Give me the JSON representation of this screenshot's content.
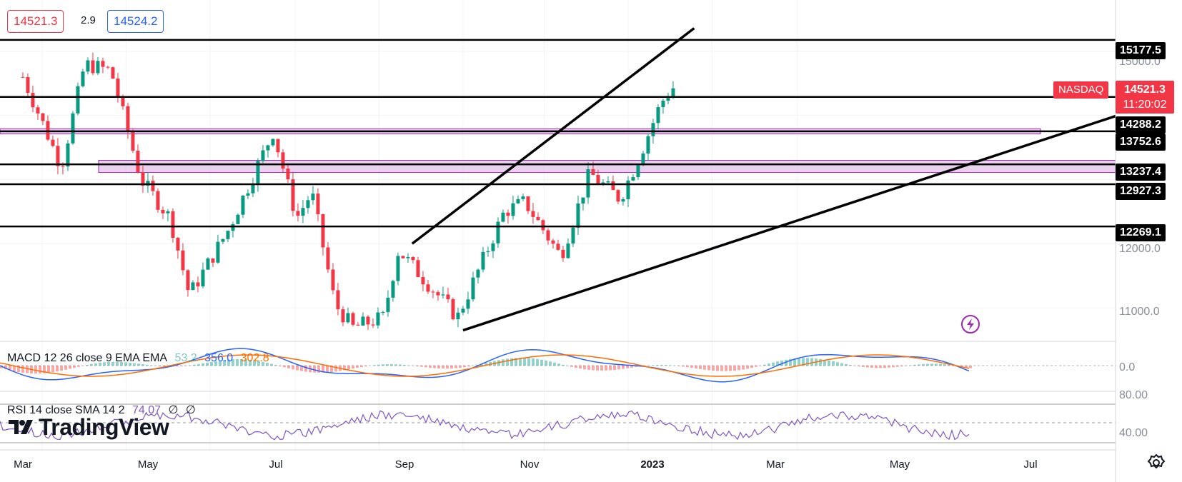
{
  "header": {
    "bid": "14521.3",
    "spread": "2.9",
    "ask": "14524.2"
  },
  "price_axis": {
    "ticks": [
      "15000.0",
      "12000.0",
      "11000.0"
    ],
    "levels": [
      "15177.5",
      "14288.2",
      "13752.6",
      "13237.4",
      "12927.3",
      "12269.1"
    ],
    "last_price": "14521.3",
    "countdown": "11:20:02",
    "symbol": "NASDAQ"
  },
  "macd": {
    "label": "MACD 12 26 close 9 EMA EMA",
    "hist": "53.2",
    "macd": "356.0",
    "signal": "302.8",
    "zero": "0.0"
  },
  "rsi": {
    "label": "RSI 14 close SMA 14 2",
    "value": "74.07",
    "extra1": "∅",
    "extra2": "∅",
    "upper": "80.00",
    "lower": "40.00"
  },
  "time_axis": [
    "Mar",
    "May",
    "Jul",
    "Sep",
    "Nov",
    "2023",
    "Mar",
    "May",
    "Jul"
  ],
  "branding": {
    "logo": "TradingView"
  },
  "icons": {
    "settings": "gear-icon",
    "signal": "lightning-icon"
  },
  "colors": {
    "up": "#089981",
    "down": "#f23645",
    "macd_line": "#2962ff",
    "signal_line": "#ff6d00",
    "rsi_line": "#7e57c2",
    "zone": "#e1bee7"
  },
  "chart_data": {
    "type": "candlestick",
    "symbol": "NASDAQ",
    "price_range": [
      10500,
      15800
    ],
    "x": [
      "2022-02-15",
      "2022-03-15",
      "2022-04-01",
      "2022-04-20",
      "2022-05-12",
      "2022-06-02",
      "2022-06-16",
      "2022-07-14",
      "2022-08-16",
      "2022-09-02",
      "2022-09-13",
      "2022-09-30",
      "2022-10-13",
      "2022-11-04",
      "2022-11-15",
      "2022-12-28",
      "2023-01-31",
      "2023-02-15",
      "2023-03-13",
      "2023-04-03",
      "2023-04-25",
      "2023-05-08",
      "2023-05-25",
      "2023-06-06"
    ],
    "close": [
      14600,
      13200,
      14800,
      14700,
      13000,
      12400,
      11200,
      12200,
      13750,
      12400,
      12800,
      11050,
      10690,
      10850,
      11900,
      10850,
      12500,
      12650,
      11800,
      13100,
      12700,
      13300,
      14200,
      14521
    ],
    "horizontal_levels": [
      15177.5,
      14288.2,
      13752.6,
      13237.4,
      12927.3,
      12269.1
    ],
    "zones": [
      [
        13712,
        13792
      ],
      [
        13110,
        13300
      ]
    ]
  }
}
